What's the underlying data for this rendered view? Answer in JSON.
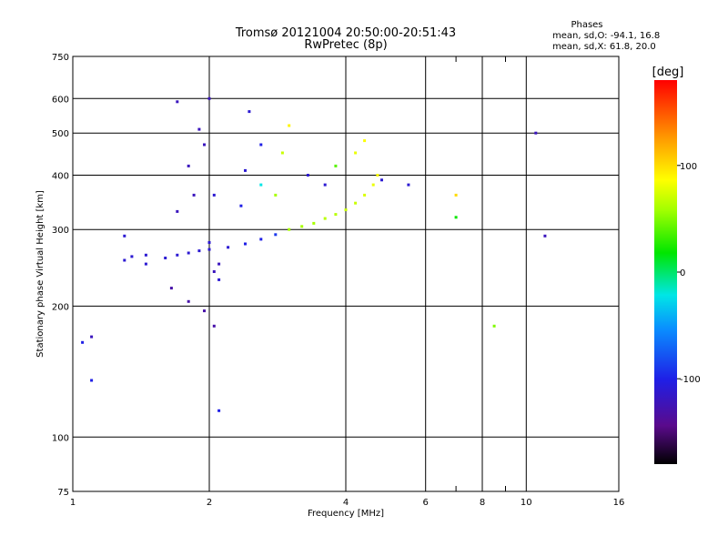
{
  "chart_data": {
    "type": "scatter",
    "title": "Tromsø 20121004 20:50:00-20:51:43",
    "subtitle": "RwPretec (8p)",
    "xlabel": "Frequency [MHz]",
    "ylabel": "Stationary phase Virtual Height [km]",
    "x_scale": "log",
    "y_scale": "log",
    "xlim": [
      1,
      16
    ],
    "ylim": [
      75,
      750
    ],
    "x_ticks": [
      1,
      2,
      4,
      6,
      8,
      10,
      16
    ],
    "x_tick_labels": [
      "1",
      "2",
      "4",
      "6",
      "8",
      "10",
      "16"
    ],
    "x_minor_ticks": [
      7,
      9
    ],
    "y_ticks": [
      75,
      100,
      200,
      300,
      400,
      500,
      600,
      750
    ],
    "y_tick_labels": [
      "75",
      "100",
      "200",
      "300",
      "400",
      "500",
      "600",
      "750"
    ],
    "grid": true,
    "stats": {
      "heading": "Phases",
      "line_o": "mean, sd,O: -94.1, 16.8",
      "line_x": "mean, sd,X:  61.8, 20.0"
    },
    "colorbar": {
      "label": "[deg]",
      "range": [
        -180,
        180
      ],
      "ticks": [
        100,
        0,
        -100
      ],
      "tick_labels": [
        "100",
        "0",
        "-100"
      ]
    },
    "series": [
      {
        "points": [
          [
            1.6,
            258
          ],
          [
            1.7,
            262
          ],
          [
            1.8,
            265
          ],
          [
            1.9,
            268
          ],
          [
            2.0,
            270
          ],
          [
            2.2,
            273
          ],
          [
            2.4,
            278
          ],
          [
            2.6,
            285
          ],
          [
            2.8,
            292
          ],
          [
            3.0,
            300
          ],
          [
            3.2,
            305
          ],
          [
            3.4,
            310
          ],
          [
            3.6,
            318
          ],
          [
            3.8,
            325
          ],
          [
            4.0,
            333
          ],
          [
            4.2,
            345
          ],
          [
            4.4,
            360
          ],
          [
            4.6,
            380
          ],
          [
            4.7,
            400
          ],
          [
            1.3,
            255
          ],
          [
            1.35,
            260
          ],
          [
            1.45,
            262
          ],
          [
            1.7,
            330
          ],
          [
            1.8,
            420
          ],
          [
            1.9,
            510
          ],
          [
            2.0,
            600
          ],
          [
            2.05,
            360
          ],
          [
            1.65,
            220
          ],
          [
            1.8,
            205
          ],
          [
            1.95,
            195
          ],
          [
            2.05,
            180
          ],
          [
            2.05,
            240
          ],
          [
            1.7,
            590
          ],
          [
            1.85,
            360
          ],
          [
            1.95,
            470
          ],
          [
            2.0,
            280
          ],
          [
            2.35,
            340
          ],
          [
            2.4,
            410
          ],
          [
            2.45,
            560
          ],
          [
            2.6,
            380
          ],
          [
            2.6,
            470
          ],
          [
            2.8,
            360
          ],
          [
            2.9,
            450
          ],
          [
            3.0,
            520
          ],
          [
            3.3,
            400
          ],
          [
            3.6,
            380
          ],
          [
            3.8,
            420
          ],
          [
            4.2,
            450
          ],
          [
            4.4,
            480
          ],
          [
            4.8,
            390
          ],
          [
            5.5,
            380
          ],
          [
            1.05,
            165
          ],
          [
            1.1,
            170
          ],
          [
            1.1,
            135
          ],
          [
            1.3,
            290
          ],
          [
            1.45,
            250
          ],
          [
            2.1,
            250
          ],
          [
            2.1,
            230
          ],
          [
            2.1,
            115
          ],
          [
            7.0,
            360
          ],
          [
            7.0,
            320
          ],
          [
            8.5,
            180
          ],
          [
            11.0,
            290
          ],
          [
            10.5,
            500
          ]
        ],
        "phases": [
          -110,
          -110,
          -110,
          -110,
          -110,
          -110,
          -100,
          -100,
          -90,
          60,
          60,
          60,
          65,
          65,
          70,
          70,
          75,
          80,
          85,
          -110,
          -110,
          -110,
          -120,
          -120,
          -120,
          -120,
          -110,
          -130,
          -130,
          -130,
          -130,
          -120,
          -120,
          -120,
          -120,
          -110,
          -100,
          -110,
          -110,
          -20,
          -100,
          60,
          70,
          90,
          -110,
          -110,
          40,
          80,
          85,
          -110,
          -110,
          -100,
          -120,
          -100,
          -110,
          -110,
          -120,
          -110,
          -100,
          100,
          20,
          50,
          -120,
          -120
        ]
      }
    ]
  }
}
